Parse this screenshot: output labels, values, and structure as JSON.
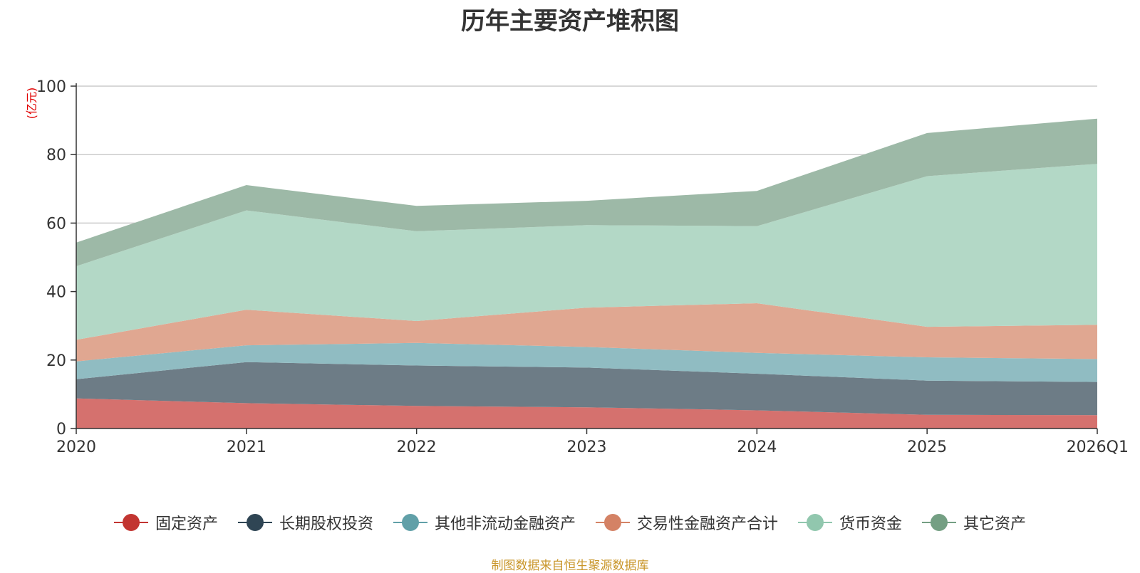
{
  "chart_data": {
    "type": "area",
    "stacked": true,
    "title": "历年主要资产堆积图",
    "ylabel": "(亿元)",
    "xlabel": "",
    "ylim": [
      0,
      100
    ],
    "yticks": [
      0,
      20,
      40,
      60,
      80,
      100
    ],
    "grid": true,
    "legend_position": "bottom",
    "categories": [
      "2020",
      "2021",
      "2022",
      "2023",
      "2024",
      "2025",
      "2026Q1"
    ],
    "series": [
      {
        "name": "固定资产",
        "color": "#c23531",
        "fill": "#d5716e",
        "values": [
          8.8,
          7.4,
          6.6,
          6.2,
          5.3,
          4.0,
          3.9
        ]
      },
      {
        "name": "长期股权投资",
        "color": "#2f4554",
        "fill": "#6d7c86",
        "values": [
          5.6,
          12.0,
          11.8,
          11.6,
          10.7,
          10.0,
          9.7
        ]
      },
      {
        "name": "其他非流动金融资产",
        "color": "#61a0a8",
        "fill": "#90bcc2",
        "values": [
          5.2,
          4.9,
          6.6,
          6.0,
          6.1,
          6.8,
          6.7
        ]
      },
      {
        "name": "交易性金融资产合计",
        "color": "#d48265",
        "fill": "#e0a791",
        "values": [
          6.3,
          10.4,
          6.4,
          11.5,
          14.5,
          8.9,
          10.0
        ]
      },
      {
        "name": "货币资金",
        "color": "#91c7ae",
        "fill": "#b3d8c6",
        "values": [
          21.5,
          29.0,
          26.2,
          24.1,
          22.5,
          44.0,
          47.0
        ]
      },
      {
        "name": "其它资产",
        "color": "#749f83",
        "fill": "#9db9a7",
        "values": [
          6.9,
          7.4,
          7.4,
          7.1,
          10.3,
          12.6,
          13.2
        ]
      }
    ]
  },
  "source_text": "制图数据来自恒生聚源数据库"
}
